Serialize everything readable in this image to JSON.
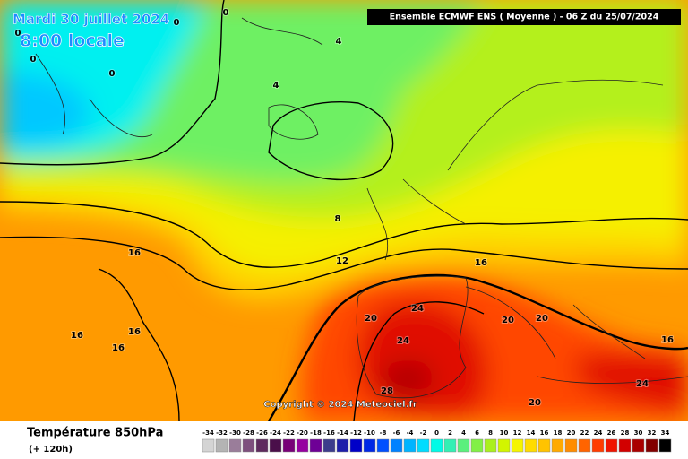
{
  "header": {
    "date": "Mardi 30 juillet 2024",
    "time": "8:00 locale",
    "model": "Ensemble ECMWF ENS  ( Moyenne )  -  06 Z du 25/07/2024"
  },
  "copyright": "Copyright © 2024 Meteociel.fr",
  "legend": {
    "title": "Température 850hPa",
    "subtitle": "(+ 120h)"
  },
  "scale": {
    "labels": [
      -34,
      -32,
      -30,
      -28,
      -26,
      -24,
      -22,
      -20,
      -18,
      -16,
      -14,
      -12,
      -10,
      -8,
      -6,
      -4,
      -2,
      0,
      2,
      4,
      6,
      8,
      10,
      12,
      14,
      16,
      18,
      20,
      22,
      24,
      26,
      28,
      30,
      32,
      34
    ],
    "colors": [
      "#d4d4d4",
      "#b4b4b4",
      "#9a7d9a",
      "#7d4f7d",
      "#5e2a5e",
      "#4a0f4a",
      "#780078",
      "#9600a0",
      "#6e0096",
      "#3c3c8c",
      "#1e1eaa",
      "#0000c8",
      "#0028e6",
      "#0050ff",
      "#0082ff",
      "#00b4ff",
      "#00dcff",
      "#00fae6",
      "#32f0b4",
      "#5af07d",
      "#82f046",
      "#aaf01e",
      "#d2f500",
      "#f5f500",
      "#ffdc00",
      "#ffc300",
      "#ffaa00",
      "#ff8c00",
      "#ff6400",
      "#ff3c00",
      "#f01400",
      "#d20000",
      "#aa0000",
      "#820000",
      "#000000"
    ]
  },
  "contour_labels": [
    0,
    0,
    0,
    0,
    0,
    4,
    4,
    8,
    12,
    16,
    16,
    16,
    16,
    16,
    16,
    20,
    20,
    20,
    20,
    24,
    24,
    24,
    28
  ]
}
